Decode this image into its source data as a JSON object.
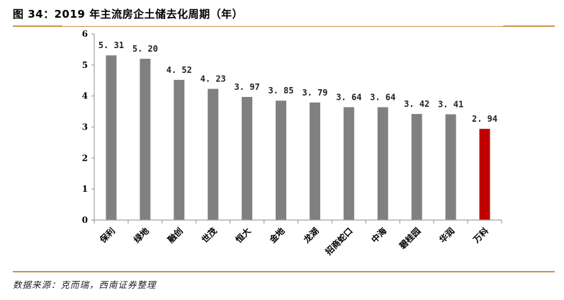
{
  "header": {
    "title": "图 34：2019 年主流房企土储去化周期（年）"
  },
  "footer": {
    "source": "数据来源：克而瑞，西南证券整理"
  },
  "colors": {
    "bar_default": "#808080",
    "bar_highlight": "#c00000",
    "rule": "#c8964a",
    "axis": "#a0a0a0"
  },
  "chart_data": {
    "type": "bar",
    "title": "2019 年主流房企土储去化周期（年）",
    "xlabel": "",
    "ylabel": "",
    "categories": [
      "保利",
      "绿地",
      "融创",
      "世茂",
      "恒大",
      "金地",
      "龙湖",
      "招商蛇口",
      "中海",
      "碧桂园",
      "华润",
      "万科"
    ],
    "values": [
      5.31,
      5.2,
      4.52,
      4.23,
      3.97,
      3.85,
      3.79,
      3.64,
      3.64,
      3.42,
      3.41,
      2.94
    ],
    "value_labels": [
      "5.31",
      "5.20",
      "4.52",
      "4.23",
      "3.97",
      "3.85",
      "3.79",
      "3.64",
      "3.64",
      "3.42",
      "3.41",
      "2.94"
    ],
    "highlight_index": 11,
    "ylim": [
      0,
      6
    ],
    "yticks": [
      0,
      1,
      2,
      3,
      4,
      5,
      6
    ],
    "grid": false,
    "legend": null
  }
}
